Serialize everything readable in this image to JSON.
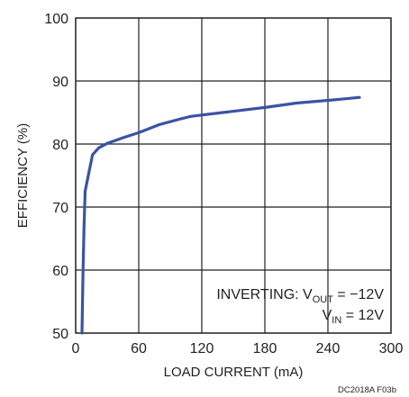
{
  "chart_data": {
    "type": "line",
    "xlabel": "LOAD CURRENT (mA)",
    "ylabel": "EFFICIENCY (%)",
    "xlim": [
      0,
      300
    ],
    "ylim": [
      50,
      100
    ],
    "x_ticks": [
      0,
      60,
      120,
      180,
      240,
      300
    ],
    "y_ticks": [
      50,
      60,
      70,
      80,
      90,
      100
    ],
    "x_tick_labels": [
      "0",
      "60",
      "120",
      "180",
      "240",
      "300"
    ],
    "y_tick_labels": [
      "50",
      "60",
      "70",
      "80",
      "90",
      "100"
    ],
    "grid": true,
    "series": [
      {
        "color": "#3a53a4",
        "points": [
          {
            "x": 6,
            "y": 50
          },
          {
            "x": 7,
            "y": 60
          },
          {
            "x": 8,
            "y": 67
          },
          {
            "x": 9,
            "y": 72.5
          },
          {
            "x": 12,
            "y": 75
          },
          {
            "x": 16,
            "y": 78.3
          },
          {
            "x": 22,
            "y": 79.4
          },
          {
            "x": 30,
            "y": 80.1
          },
          {
            "x": 45,
            "y": 81
          },
          {
            "x": 60,
            "y": 81.8
          },
          {
            "x": 80,
            "y": 83.1
          },
          {
            "x": 100,
            "y": 84
          },
          {
            "x": 110,
            "y": 84.4
          },
          {
            "x": 140,
            "y": 85
          },
          {
            "x": 180,
            "y": 85.8
          },
          {
            "x": 210,
            "y": 86.5
          },
          {
            "x": 245,
            "y": 87
          },
          {
            "x": 270,
            "y": 87.4
          }
        ]
      }
    ],
    "annotation": {
      "line1_prefix": "INVERTING: V",
      "line1_sub": "OUT",
      "line1_suffix": " = −12V",
      "line2_prefix": "V",
      "line2_sub": "IN",
      "line2_suffix": " = 12V"
    },
    "figure_code": "DC2018A F03b"
  }
}
